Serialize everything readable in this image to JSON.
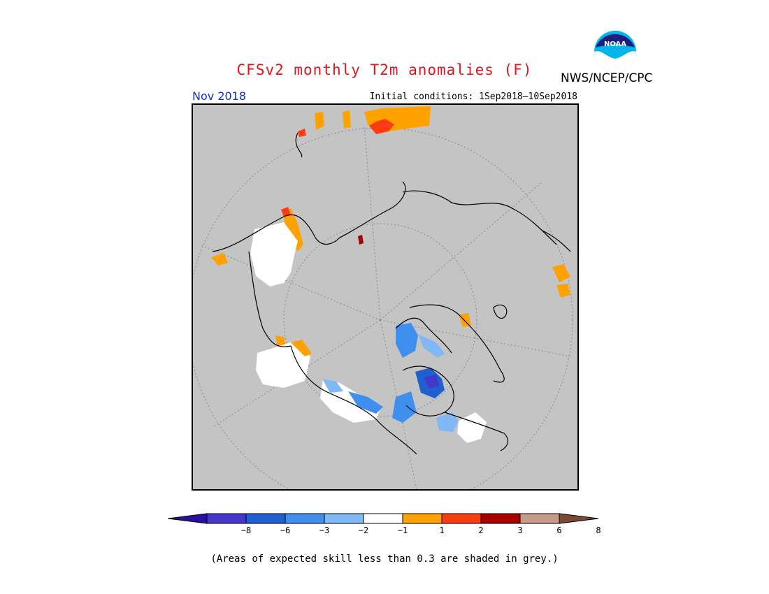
{
  "title": "CFSv2 monthly T2m anomalies (F)",
  "agency": "NWS/NCEP/CPC",
  "logo_text": "NOAA",
  "forecast_month": "Nov 2018",
  "initial_conditions": "Initial conditions: 1Sep2018–10Sep2018",
  "footnote": "(Areas of expected skill less than 0.3 are shaded in grey.)",
  "colors": {
    "title": "#e8121b",
    "month": "#0a2fd6",
    "skill_mask_grey": "#c4c4c4"
  },
  "colorbar": {
    "ticks": [
      "−8",
      "−6",
      "−3",
      "−2",
      "−1",
      "1",
      "2",
      "3",
      "6",
      "8"
    ],
    "bins": [
      {
        "color": "#2b0fa2"
      },
      {
        "color": "#4437c9"
      },
      {
        "color": "#1f5fd0"
      },
      {
        "color": "#3f8fee"
      },
      {
        "color": "#80b8f6"
      },
      {
        "color": "#ffffff"
      },
      {
        "color": "#ffa200"
      },
      {
        "color": "#ff3c10"
      },
      {
        "color": "#a80000"
      },
      {
        "color": "#c79b8a"
      },
      {
        "color": "#7a4a34"
      }
    ]
  }
}
